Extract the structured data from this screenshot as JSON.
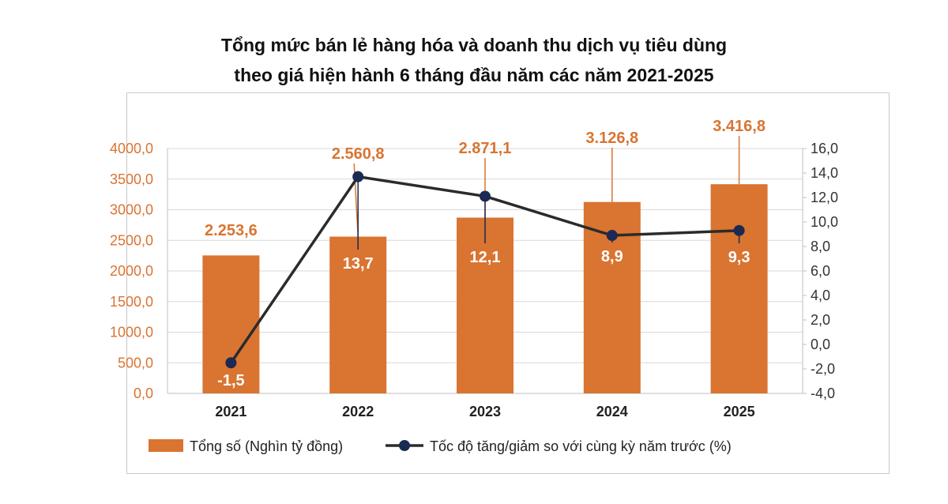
{
  "title_line1": "Tổng mức bán lẻ hàng hóa và doanh thu dịch vụ tiêu dùng",
  "title_line2": "theo giá hiện hành 6 tháng đầu năm các năm 2021-2025",
  "colors": {
    "bar": "#d97431",
    "line": "#1b2a52",
    "left_axis": "#d97431",
    "right_axis": "#333333",
    "grid": "#d9d9d9"
  },
  "chart_data": {
    "type": "bar",
    "categories": [
      "2021",
      "2022",
      "2023",
      "2024",
      "2025"
    ],
    "series": [
      {
        "name": "Tổng số (Nghìn tỷ đồng)",
        "type": "bar",
        "axis": "left",
        "values": [
          2253.6,
          2560.8,
          2871.1,
          3126.8,
          3416.8
        ],
        "labels": [
          "2.253,6",
          "2.560,8",
          "2.871,1",
          "3.126,8",
          "3.416,8"
        ]
      },
      {
        "name": "Tốc độ tăng/giảm so với cùng kỳ năm trước (%)",
        "type": "line",
        "axis": "right",
        "values": [
          -1.5,
          13.7,
          12.1,
          8.9,
          9.3
        ],
        "labels": [
          "-1,5",
          "13,7",
          "12,1",
          "8,9",
          "9,3"
        ]
      }
    ],
    "y_left": {
      "min": 0,
      "max": 4000,
      "step": 500,
      "ticks": [
        "0,0",
        "500,0",
        "1000,0",
        "1500,0",
        "2000,0",
        "2500,0",
        "3000,0",
        "3500,0",
        "4000,0"
      ]
    },
    "y_right": {
      "min": -4,
      "max": 16,
      "step": 2,
      "ticks": [
        "-4,0",
        "-2,0",
        "0,0",
        "2,0",
        "4,0",
        "6,0",
        "8,0",
        "10,0",
        "12,0",
        "14,0",
        "16,0"
      ]
    },
    "grid": true,
    "legend_position": "bottom"
  }
}
